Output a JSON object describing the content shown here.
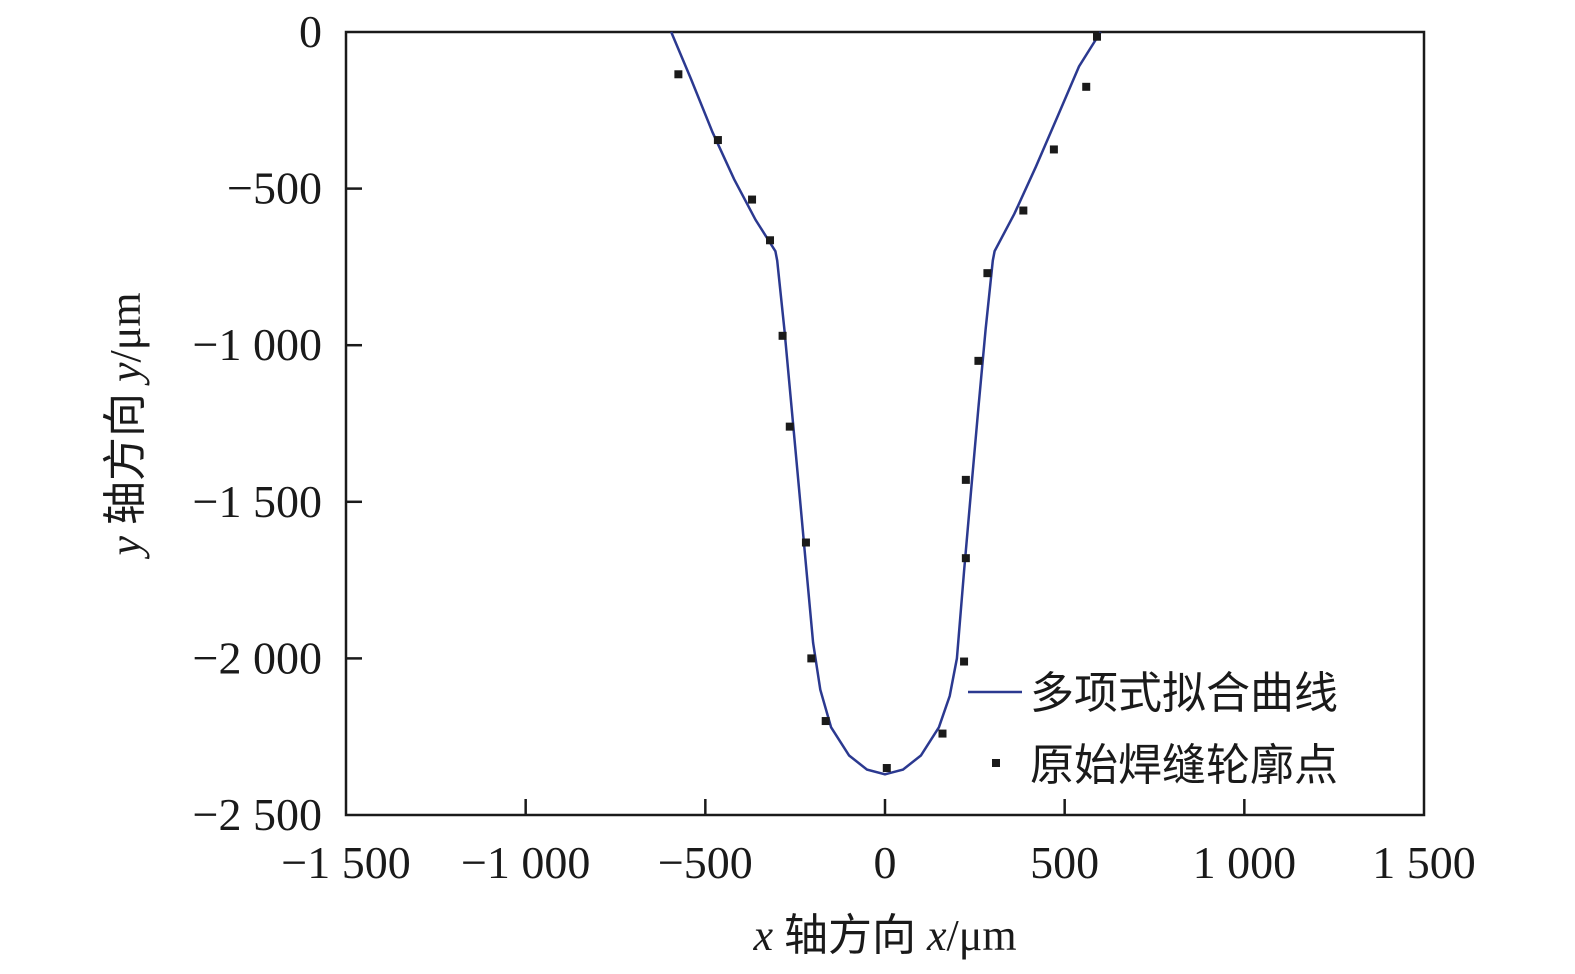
{
  "chart_data": {
    "type": "scatter",
    "title": "",
    "xlabel": {
      "var": "x",
      "text": " 轴方向 ",
      "var2": "x",
      "unit": "/μm"
    },
    "ylabel": {
      "var": "y",
      "text": " 轴方向 ",
      "var2": "y",
      "unit": "/μm"
    },
    "xlim": [
      -1500,
      1500
    ],
    "ylim": [
      -2500,
      0
    ],
    "xticks": [
      {
        "v": -1500,
        "label": "−1 500"
      },
      {
        "v": -1000,
        "label": "−1 000"
      },
      {
        "v": -500,
        "label": "−500"
      },
      {
        "v": 0,
        "label": "0"
      },
      {
        "v": 500,
        "label": "500"
      },
      {
        "v": 1000,
        "label": "1 000"
      },
      {
        "v": 1500,
        "label": "1 500"
      }
    ],
    "yticks": [
      {
        "v": 0,
        "label": "0"
      },
      {
        "v": -500,
        "label": "−500"
      },
      {
        "v": -1000,
        "label": "−1 000"
      },
      {
        "v": -1500,
        "label": "−1 500"
      },
      {
        "v": -2000,
        "label": "−2 000"
      },
      {
        "v": -2500,
        "label": "−2 500"
      }
    ],
    "legend_position": "bottom-right",
    "grid": false,
    "series": [
      {
        "name": "多项式拟合曲线",
        "kind": "line",
        "color": "#2b3990",
        "x": [
          -595,
          -540,
          -480,
          -420,
          -360,
          -305,
          -300,
          -280,
          -260,
          -240,
          -220,
          -200,
          -180,
          -150,
          -100,
          -50,
          0,
          50,
          100,
          150,
          180,
          200,
          220,
          240,
          260,
          280,
          300,
          305,
          360,
          420,
          480,
          540,
          600
        ],
        "y": [
          0,
          -150,
          -320,
          -470,
          -600,
          -700,
          -730,
          -950,
          -1200,
          -1450,
          -1700,
          -1950,
          -2100,
          -2220,
          -2310,
          -2355,
          -2370,
          -2355,
          -2310,
          -2220,
          -2120,
          -2000,
          -1720,
          -1460,
          -1200,
          -950,
          -730,
          -700,
          -580,
          -430,
          -270,
          -110,
          0
        ]
      },
      {
        "name": "原始焊缝轮廓点",
        "kind": "scatter",
        "color": "#1a1a1a",
        "x": [
          -575,
          -465,
          -370,
          -320,
          -285,
          -265,
          -220,
          -205,
          -165,
          5,
          160,
          220,
          225,
          225,
          260,
          285,
          385,
          470,
          560,
          590
        ],
        "y": [
          -135,
          -345,
          -535,
          -665,
          -970,
          -1260,
          -1630,
          -2000,
          -2200,
          -2350,
          -2240,
          -2010,
          -1680,
          -1430,
          -1050,
          -770,
          -570,
          -375,
          -175,
          -15
        ]
      }
    ]
  }
}
